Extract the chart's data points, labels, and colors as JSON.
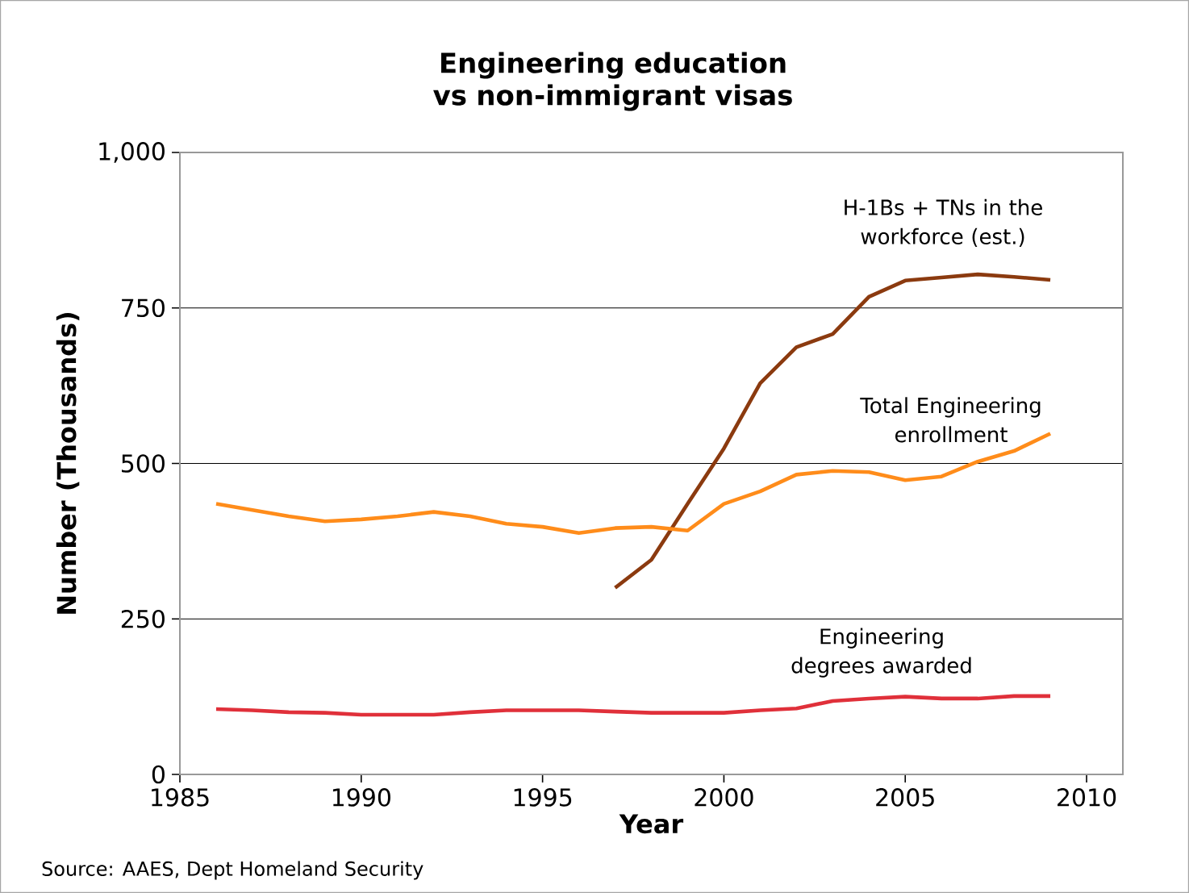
{
  "chart_data": {
    "type": "line",
    "title": "Engineering education vs non-immigrant visas",
    "xlabel": "Year",
    "ylabel": "Number (Thousands)",
    "x": [
      1986,
      1987,
      1988,
      1989,
      1990,
      1991,
      1992,
      1993,
      1994,
      1995,
      1996,
      1997,
      1998,
      1999,
      2000,
      2001,
      2002,
      2003,
      2004,
      2005,
      2006,
      2007,
      2008,
      2009
    ],
    "series": [
      {
        "name": "H-1Bs + TNs in the workforce (est.)",
        "color": "#8b3a0f",
        "values": [
          null,
          null,
          null,
          null,
          null,
          null,
          null,
          null,
          null,
          null,
          null,
          300,
          345,
          435,
          524,
          629,
          687,
          708,
          768,
          794,
          799,
          804,
          800,
          795
        ]
      },
      {
        "name": "Total Engineering enrollment",
        "color": "#ff8c1a",
        "values": [
          435,
          425,
          415,
          407,
          410,
          415,
          422,
          415,
          403,
          398,
          388,
          396,
          398,
          392,
          435,
          455,
          482,
          488,
          486,
          473,
          479,
          503,
          520,
          548
        ]
      },
      {
        "name": "Engineering degrees awarded",
        "color": "#e0303a",
        "values": [
          105,
          103,
          100,
          99,
          96,
          96,
          96,
          100,
          103,
          103,
          103,
          101,
          99,
          99,
          99,
          103,
          106,
          118,
          122,
          125,
          122,
          122,
          126,
          126
        ]
      }
    ],
    "xlim": [
      1985,
      2011
    ],
    "ylim": [
      0,
      1000
    ],
    "xticks": [
      1985,
      1990,
      1995,
      2000,
      2005,
      2010
    ],
    "yticks": [
      0,
      {
        "value": 250,
        "label": "250"
      },
      {
        "value": 500,
        "label": "500"
      },
      {
        "value": 750,
        "label": "750"
      },
      {
        "value": 1000,
        "label": "1,000"
      }
    ],
    "grid": "y",
    "annotations": [
      "Source: AAES, Dept Homeland Security"
    ]
  }
}
